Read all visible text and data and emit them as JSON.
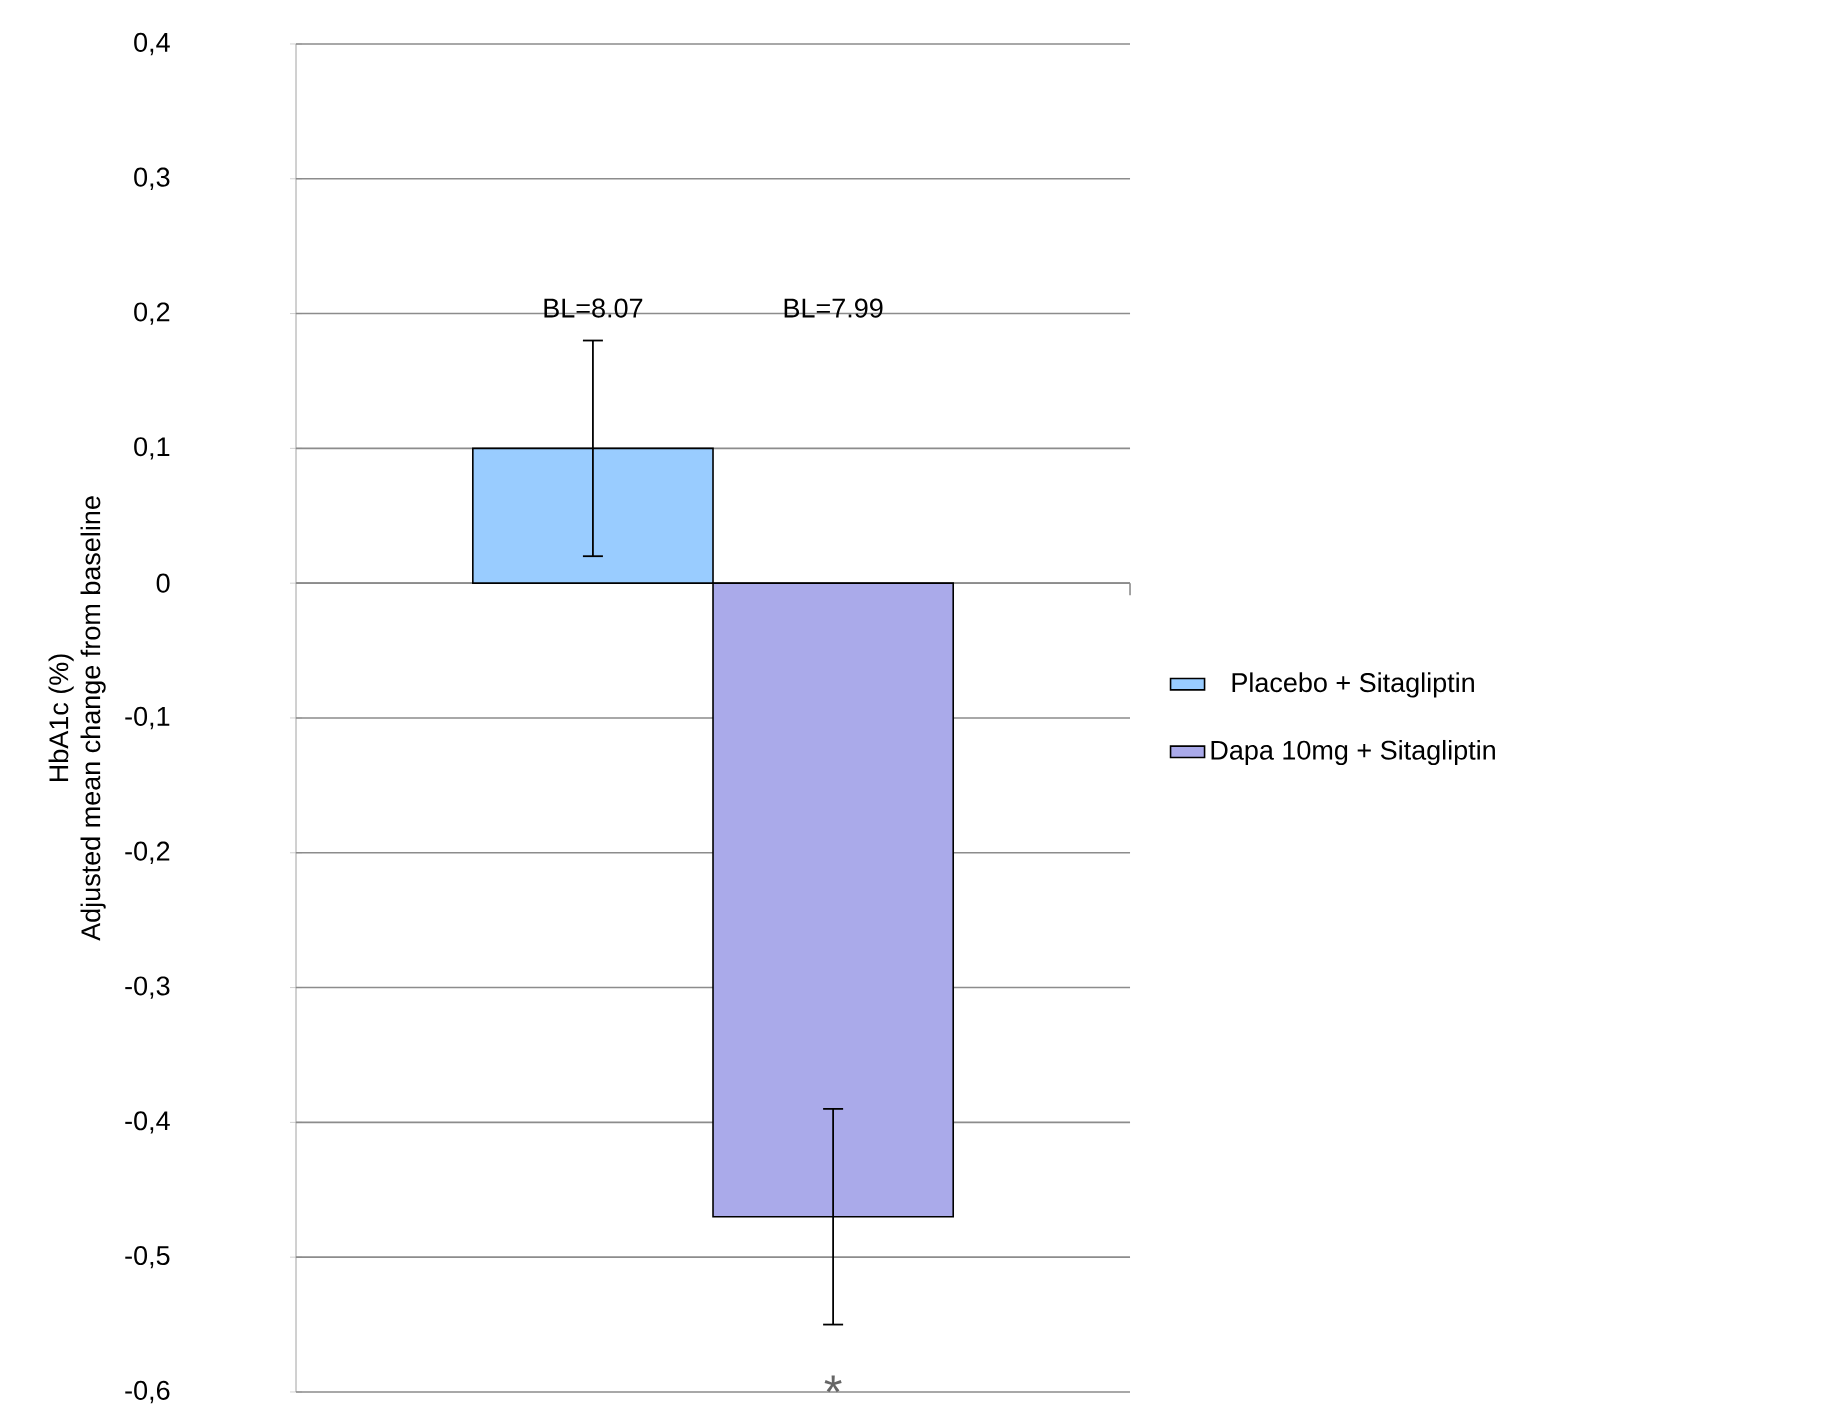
{
  "chart_data": {
    "type": "bar",
    "ylabel": "HbA1c (%) Adjusted mean change from baseline",
    "categories": [
      null
    ],
    "series": [
      {
        "name": "Placebo + Sitagliptin",
        "color": "#99ccff",
        "values": [
          0.1
        ],
        "errors": [
          [
            0.02,
            0.18
          ]
        ]
      },
      {
        "name": "Dapa 10mg + Sitagliptin",
        "color": "#aaaaea",
        "values": [
          -0.47
        ],
        "errors": [
          [
            -0.55,
            -0.39
          ]
        ]
      }
    ],
    "ylim": [
      -0.6,
      0.4
    ],
    "yticks": [
      {
        "value": -0.6,
        "label": "-0,6"
      },
      {
        "value": -0.5,
        "label": "-0,5"
      },
      {
        "value": -0.4,
        "label": "-0,4"
      },
      {
        "value": -0.3,
        "label": "-0,3"
      },
      {
        "value": -0.2,
        "label": "-0,2"
      },
      {
        "value": -0.1,
        "label": "-0,1"
      },
      0,
      {
        "value": 0.1,
        "label": "0,1"
      },
      {
        "value": 0.2,
        "label": "0,2"
      },
      {
        "value": 0.3,
        "label": "0,3"
      },
      {
        "value": 0.4,
        "label": "0,4"
      }
    ],
    "grid": "y",
    "legend": "right",
    "annotations": [
      "BL=8.07",
      "BL=7.99",
      "*"
    ]
  }
}
